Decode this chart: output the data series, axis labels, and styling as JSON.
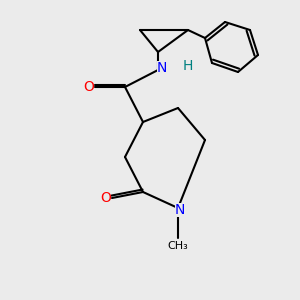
{
  "bg_color": "#ebebeb",
  "bond_color": "#000000",
  "bond_width": 1.5,
  "atom_colors": {
    "O": "#ff0000",
    "N": "#0000ff",
    "N_amide": "#0000ff",
    "H_amide": "#008080",
    "C": "#000000"
  },
  "font_size_atom": 10,
  "font_size_methyl": 9
}
